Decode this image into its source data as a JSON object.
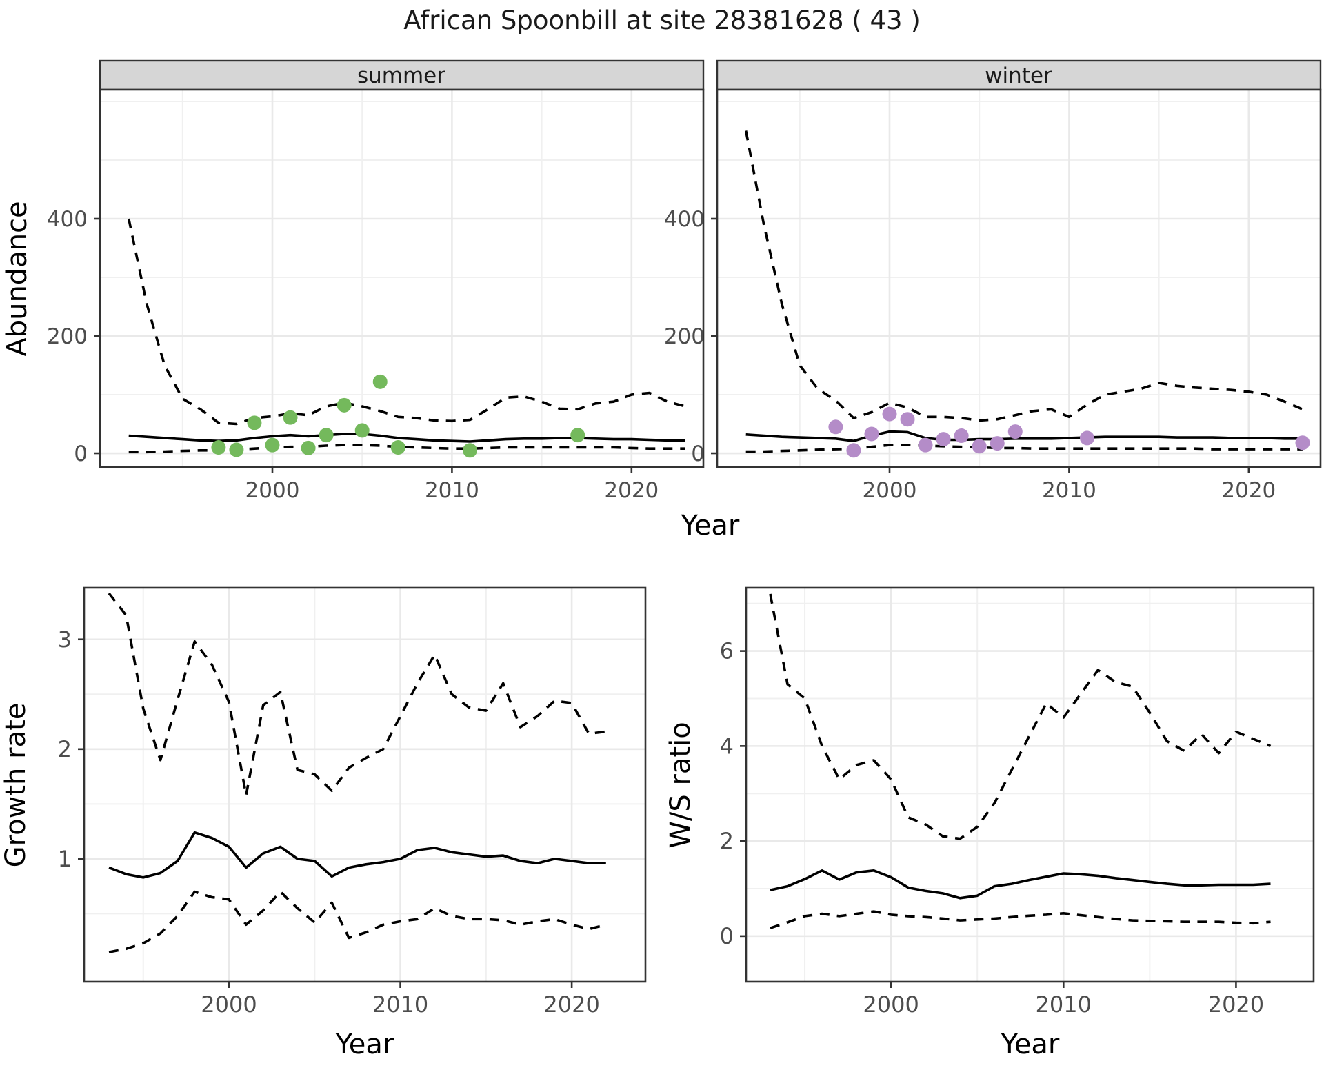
{
  "title": "African Spoonbill at site 28381628 ( 43 )",
  "facets": [
    "summer",
    "winter"
  ],
  "axis_labels": {
    "x": "Year",
    "y_abundance": "Abundance",
    "y_growth": "Growth rate",
    "y_ws": "W/S ratio"
  },
  "colors": {
    "summer_point": "#74b95c",
    "winter_point": "#b48cc8",
    "line": "#000000",
    "grid_major": "#e9e9e9",
    "grid_minor": "#f0f0f0",
    "panel_border": "#333333",
    "strip_bg": "#d6d6d6",
    "tick_text": "#4d4d4d",
    "background": "#ffffff"
  },
  "chart_data": [
    {
      "type": "line",
      "facet": "summer",
      "xlabel": "Year",
      "ylabel": "Abundance",
      "x": [
        1992,
        1993,
        1994,
        1995,
        1996,
        1997,
        1998,
        1999,
        2000,
        2001,
        2002,
        2003,
        2004,
        2005,
        2006,
        2007,
        2008,
        2009,
        2010,
        2011,
        2012,
        2013,
        2014,
        2015,
        2016,
        2017,
        2018,
        2019,
        2020,
        2021,
        2022,
        2023
      ],
      "series": [
        {
          "name": "mean",
          "style": "solid",
          "values": [
            30,
            28,
            26,
            24,
            22,
            21,
            22,
            26,
            29,
            31,
            29,
            31,
            33,
            33,
            30,
            26,
            24,
            22,
            21,
            20,
            22,
            24,
            25,
            25,
            26,
            26,
            25,
            24,
            24,
            23,
            22,
            22
          ]
        },
        {
          "name": "lower_ci",
          "style": "dashed",
          "values": [
            2,
            2,
            3,
            4,
            5,
            5,
            6,
            8,
            10,
            11,
            11,
            13,
            14,
            14,
            13,
            11,
            10,
            9,
            8,
            8,
            9,
            10,
            10,
            10,
            10,
            10,
            10,
            10,
            9,
            8,
            8,
            8
          ]
        },
        {
          "name": "upper_ci",
          "style": "dashed",
          "values": [
            400,
            255,
            150,
            93,
            75,
            52,
            50,
            60,
            63,
            68,
            65,
            80,
            86,
            80,
            72,
            62,
            60,
            56,
            55,
            57,
            75,
            95,
            97,
            88,
            76,
            75,
            85,
            88,
            100,
            103,
            88,
            80
          ]
        }
      ],
      "points": {
        "name": "observed_counts",
        "color_key": "summer_point",
        "years": [
          1997,
          1998,
          1999,
          2000,
          2001,
          2002,
          2003,
          2004,
          2005,
          2006,
          2007,
          2011,
          2017
        ],
        "values": [
          10,
          6,
          52,
          14,
          61,
          9,
          31,
          82,
          39,
          122,
          10,
          5,
          31
        ]
      },
      "x_ticks": [
        2000,
        2010,
        2020
      ],
      "x_minor": [
        1995,
        2005,
        2015
      ],
      "y_ticks": [
        0,
        200,
        400
      ],
      "y_minor": [
        100,
        300,
        500,
        600
      ],
      "xlim": [
        1990.4,
        2024.0
      ],
      "ylim": [
        -23.5,
        620
      ]
    },
    {
      "type": "line",
      "facet": "winter",
      "xlabel": "Year",
      "ylabel": "Abundance",
      "x": [
        1992,
        1993,
        1994,
        1995,
        1996,
        1997,
        1998,
        1999,
        2000,
        2001,
        2002,
        2003,
        2004,
        2005,
        2006,
        2007,
        2008,
        2009,
        2010,
        2011,
        2012,
        2013,
        2014,
        2015,
        2016,
        2017,
        2018,
        2019,
        2020,
        2021,
        2022,
        2023
      ],
      "series": [
        {
          "name": "mean",
          "style": "solid",
          "values": [
            32,
            30,
            28,
            27,
            26,
            25,
            21,
            30,
            37,
            36,
            26,
            23,
            23,
            24,
            24,
            25,
            25,
            25,
            26,
            27,
            28,
            28,
            28,
            28,
            27,
            27,
            27,
            26,
            26,
            26,
            25,
            25
          ]
        },
        {
          "name": "lower_ci",
          "style": "dashed",
          "values": [
            3,
            3,
            4,
            5,
            6,
            7,
            8,
            11,
            14,
            14,
            13,
            12,
            11,
            10,
            9,
            9,
            8,
            8,
            8,
            8,
            8,
            8,
            8,
            8,
            8,
            8,
            7,
            7,
            7,
            7,
            7,
            7
          ]
        },
        {
          "name": "upper_ci",
          "style": "dashed",
          "values": [
            550,
            390,
            255,
            150,
            110,
            90,
            60,
            70,
            86,
            78,
            62,
            62,
            60,
            56,
            58,
            65,
            72,
            75,
            62,
            83,
            100,
            105,
            110,
            120,
            115,
            112,
            110,
            108,
            105,
            100,
            88,
            75
          ]
        }
      ],
      "points": {
        "name": "observed_counts",
        "color_key": "winter_point",
        "years": [
          1997,
          1998,
          1999,
          2000,
          2001,
          2002,
          2003,
          2004,
          2005,
          2006,
          2007,
          2011,
          2023
        ],
        "values": [
          45,
          5,
          33,
          67,
          58,
          14,
          24,
          30,
          12,
          17,
          37,
          26,
          18
        ]
      },
      "x_ticks": [
        2000,
        2010,
        2020
      ],
      "x_minor": [
        1995,
        2005,
        2015
      ],
      "y_ticks": [
        0,
        200,
        400
      ],
      "y_minor": [
        100,
        300,
        500,
        600
      ],
      "xlim": [
        1990.4,
        2024.0
      ],
      "ylim": [
        -23.5,
        620
      ]
    },
    {
      "type": "line",
      "facet": null,
      "xlabel": "Year",
      "ylabel": "Growth rate",
      "x": [
        1993,
        1994,
        1995,
        1996,
        1997,
        1998,
        1999,
        2000,
        2001,
        2002,
        2003,
        2004,
        2005,
        2006,
        2007,
        2008,
        2009,
        2010,
        2011,
        2012,
        2013,
        2014,
        2015,
        2016,
        2017,
        2018,
        2019,
        2020,
        2021,
        2022
      ],
      "series": [
        {
          "name": "mean",
          "style": "solid",
          "values": [
            0.92,
            0.86,
            0.83,
            0.87,
            0.98,
            1.24,
            1.19,
            1.11,
            0.92,
            1.05,
            1.11,
            1.0,
            0.98,
            0.84,
            0.92,
            0.95,
            0.97,
            1.0,
            1.08,
            1.1,
            1.06,
            1.04,
            1.02,
            1.03,
            0.98,
            0.96,
            1.0,
            0.98,
            0.96,
            0.96
          ]
        },
        {
          "name": "lower_ci",
          "style": "dashed",
          "values": [
            0.15,
            0.18,
            0.23,
            0.32,
            0.48,
            0.7,
            0.65,
            0.63,
            0.4,
            0.53,
            0.7,
            0.55,
            0.42,
            0.6,
            0.28,
            0.33,
            0.4,
            0.43,
            0.45,
            0.55,
            0.48,
            0.45,
            0.45,
            0.44,
            0.4,
            0.43,
            0.45,
            0.4,
            0.36,
            0.4
          ]
        },
        {
          "name": "upper_ci",
          "style": "dashed",
          "values": [
            3.42,
            3.22,
            2.37,
            1.9,
            2.45,
            2.98,
            2.77,
            2.43,
            1.58,
            2.4,
            2.52,
            1.81,
            1.77,
            1.62,
            1.83,
            1.92,
            2.0,
            2.3,
            2.6,
            2.86,
            2.5,
            2.38,
            2.35,
            2.6,
            2.2,
            2.3,
            2.44,
            2.42,
            2.14,
            2.16
          ]
        }
      ],
      "points": null,
      "x_ticks": [
        2000,
        2010,
        2020
      ],
      "x_minor": [
        1995,
        2005,
        2015
      ],
      "y_ticks": [
        1,
        2,
        3
      ],
      "y_minor": [
        0.5,
        1.5,
        2.5
      ],
      "xlim": [
        1991.55,
        2024.3
      ],
      "ylim": [
        -0.12,
        3.47
      ]
    },
    {
      "type": "line",
      "facet": null,
      "xlabel": "Year",
      "ylabel": "W/S ratio",
      "x": [
        1993,
        1994,
        1995,
        1996,
        1997,
        1998,
        1999,
        2000,
        2001,
        2002,
        2003,
        2004,
        2005,
        2006,
        2007,
        2008,
        2009,
        2010,
        2011,
        2012,
        2013,
        2014,
        2015,
        2016,
        2017,
        2018,
        2019,
        2020,
        2021,
        2022
      ],
      "series": [
        {
          "name": "mean",
          "style": "solid",
          "values": [
            0.97,
            1.05,
            1.2,
            1.38,
            1.19,
            1.34,
            1.38,
            1.24,
            1.02,
            0.95,
            0.9,
            0.8,
            0.85,
            1.05,
            1.1,
            1.18,
            1.25,
            1.32,
            1.3,
            1.27,
            1.22,
            1.18,
            1.14,
            1.1,
            1.07,
            1.07,
            1.08,
            1.08,
            1.08,
            1.1
          ]
        },
        {
          "name": "lower_ci",
          "style": "dashed",
          "values": [
            0.17,
            0.29,
            0.42,
            0.47,
            0.42,
            0.47,
            0.52,
            0.45,
            0.42,
            0.4,
            0.37,
            0.33,
            0.35,
            0.37,
            0.4,
            0.43,
            0.45,
            0.48,
            0.44,
            0.4,
            0.36,
            0.33,
            0.32,
            0.31,
            0.3,
            0.3,
            0.3,
            0.28,
            0.27,
            0.3
          ]
        },
        {
          "name": "upper_ci",
          "style": "dashed",
          "values": [
            7.2,
            5.3,
            5.0,
            4.0,
            3.3,
            3.6,
            3.7,
            3.3,
            2.5,
            2.35,
            2.1,
            2.05,
            2.3,
            2.8,
            3.5,
            4.2,
            4.9,
            4.6,
            5.1,
            5.6,
            5.35,
            5.25,
            4.7,
            4.1,
            3.9,
            4.25,
            3.85,
            4.3,
            4.15,
            4.0
          ]
        }
      ],
      "points": null,
      "x_ticks": [
        2000,
        2010,
        2020
      ],
      "x_minor": [
        1995,
        2005,
        2015
      ],
      "y_ticks": [
        0,
        2,
        4,
        6
      ],
      "y_minor": [
        1,
        3,
        5,
        7
      ],
      "xlim": [
        1991.6,
        2024.5
      ],
      "ylim": [
        -0.96,
        7.33
      ]
    }
  ]
}
